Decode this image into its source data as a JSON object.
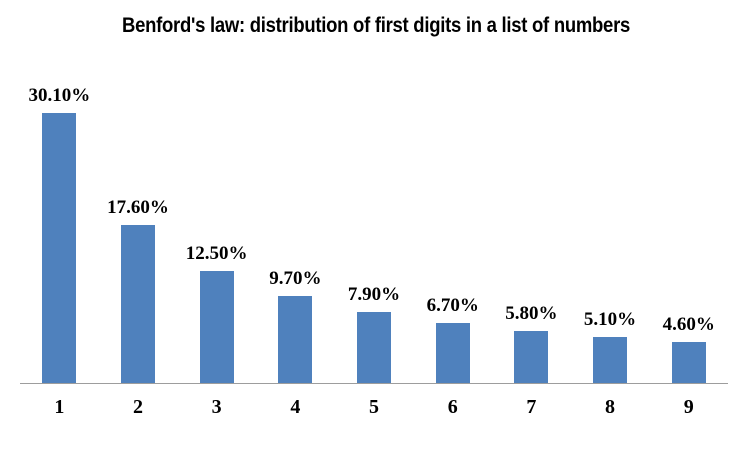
{
  "chart_data": {
    "type": "bar",
    "title": "Benford's law: distribution of first digits in a list of numbers",
    "categories": [
      "1",
      "2",
      "3",
      "4",
      "5",
      "6",
      "7",
      "8",
      "9"
    ],
    "values": [
      30.1,
      17.6,
      12.5,
      9.7,
      7.9,
      6.7,
      5.8,
      5.1,
      4.6
    ],
    "data_labels": [
      "30.10%",
      "17.60%",
      "12.50%",
      "9.70%",
      "7.90%",
      "6.70%",
      "5.80%",
      "5.10%",
      "4.60%"
    ],
    "xlabel": "",
    "ylabel": "",
    "ylim": [
      0,
      32
    ],
    "grid": false,
    "legend": false,
    "show_data_labels": true,
    "bar_color": "#4f81bd",
    "axis_line_color": "#9d9d9d",
    "text_color": "#000000",
    "background_color": "#ffffff"
  }
}
